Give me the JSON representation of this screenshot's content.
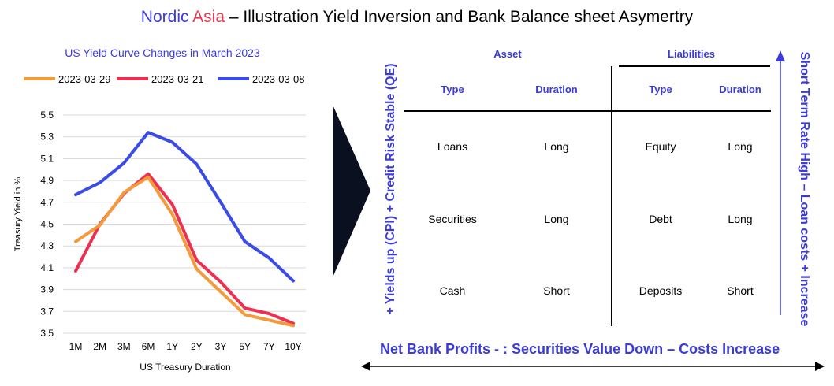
{
  "page_title": {
    "brand_a": "Nordic",
    "brand_b": "Asia",
    "rest": " – Illustration Yield Inversion and Bank Balance sheet Asymertry"
  },
  "colors": {
    "brand_blue": "#3b3bdc",
    "brand_red": "#e83a52",
    "series_0329": "#f39a3a",
    "series_0321": "#ef2f50",
    "series_0308": "#3a4ce8",
    "grid": "#d9d9d9"
  },
  "chart_data": {
    "type": "line",
    "title": "US Yield Curve Changes in March 2023",
    "xlabel": "US Treasury Duration",
    "ylabel": "Treasury Yield in %",
    "categories": [
      "1M",
      "2M",
      "3M",
      "6M",
      "1Y",
      "2Y",
      "3Y",
      "5Y",
      "7Y",
      "10Y"
    ],
    "ylim": [
      3.5,
      5.5
    ],
    "yticks": [
      "5.5",
      "5.3",
      "5.1",
      "4.9",
      "4.7",
      "4.5",
      "4.3",
      "4.1",
      "3.9",
      "3.7",
      "3.5"
    ],
    "grid": "horizontal",
    "legend_position": "top",
    "series": [
      {
        "name": "2023-03-29",
        "color": "#f39a3a",
        "values": [
          4.34,
          4.49,
          4.79,
          4.93,
          4.59,
          4.09,
          3.88,
          3.67,
          3.62,
          3.57
        ]
      },
      {
        "name": "2023-03-21",
        "color": "#ef2f50",
        "values": [
          4.07,
          4.5,
          4.78,
          4.96,
          4.68,
          4.17,
          3.97,
          3.73,
          3.68,
          3.59
        ]
      },
      {
        "name": "2023-03-08",
        "color": "#3a4ce8",
        "values": [
          4.77,
          4.88,
          5.06,
          5.34,
          5.25,
          5.05,
          4.7,
          4.34,
          4.19,
          3.98
        ]
      }
    ]
  },
  "balance_sheet": {
    "asset_label": "Asset",
    "liabilities_label": "Liabilities",
    "col_type": "Type",
    "col_duration": "Duration",
    "rows": [
      {
        "asset_type": "Loans",
        "asset_duration": "Long",
        "liab_type": "Equity",
        "liab_duration": "Long"
      },
      {
        "asset_type": "Securities",
        "asset_duration": "Long",
        "liab_type": "Debt",
        "liab_duration": "Long"
      },
      {
        "asset_type": "Cash",
        "asset_duration": "Short",
        "liab_type": "Deposits",
        "liab_duration": "Short"
      }
    ]
  },
  "side_labels": {
    "left": "+ Yields up (CPI) + Credit Risk Stable (QE)",
    "right": "Short Term Rate High – Loan costs + Increase",
    "bottom": "Net Bank Profits - : Securities Value Down – Costs Increase"
  }
}
